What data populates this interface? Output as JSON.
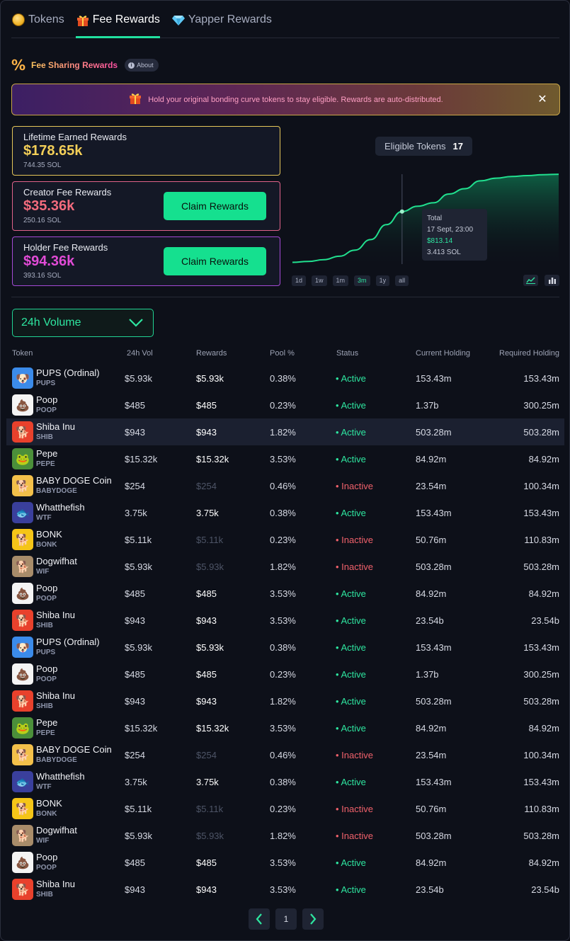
{
  "tabs": [
    {
      "label": "Tokens",
      "icon": "coin-icon",
      "active": false
    },
    {
      "label": "Fee Rewards",
      "icon": "gift-icon",
      "active": true
    },
    {
      "label": "Yapper Rewards",
      "icon": "diamond-icon",
      "active": false
    }
  ],
  "section": {
    "title": "Fee Sharing Rewards",
    "about_label": "About"
  },
  "banner": {
    "text": "Hold your original bonding curve tokens to stay eligible. Rewards are auto-distributed."
  },
  "cards": {
    "lifetime": {
      "label": "Lifetime Earned Rewards",
      "value": "$178.65k",
      "sol": "744.35 SOL"
    },
    "creator": {
      "label": "Creator Fee Rewards",
      "value": "$35.36k",
      "sol": "250.16 SOL",
      "button": "Claim Rewards"
    },
    "holder": {
      "label": "Holder Fee Rewards",
      "value": "$94.36k",
      "sol": "393.16 SOL",
      "button": "Claim Rewards"
    }
  },
  "chart": {
    "eligible_label": "Eligible Tokens",
    "eligible_count": "17",
    "tooltip": {
      "title": "Total",
      "date": "17 Sept, 23:00",
      "usd": "$813.14",
      "sol": "3.413 SOL"
    },
    "ranges": [
      "1d",
      "1w",
      "1m",
      "3m",
      "1y",
      "all"
    ],
    "selected_range": "3m",
    "colors": {
      "line": "#21e08f",
      "fill_top": "#0f6b4a"
    }
  },
  "chart_data": {
    "type": "area",
    "title": "",
    "xlabel": "",
    "ylabel": "",
    "series": [
      {
        "values": [
          2,
          3,
          5,
          9,
          16,
          28,
          45,
          60,
          66,
          70,
          80,
          86,
          95,
          98,
          100,
          101,
          102,
          102.5
        ]
      }
    ],
    "highlight": {
      "index": 7,
      "label": "17 Sept, 23:00",
      "value": "$813.14"
    },
    "grid": false
  },
  "dropdown": {
    "selected": "24h Volume"
  },
  "table": {
    "headers": {
      "token": "Token",
      "vol": "24h Vol",
      "rewards": "Rewards",
      "pool": "Pool %",
      "status": "Status",
      "current": "Current Holding",
      "required": "Required Holding"
    },
    "rows": [
      {
        "name": "PUPS (Ordinal)",
        "symbol": "PUPS",
        "logo": "pups",
        "vol": "$5.93k",
        "rewards": "$5.93k",
        "pool": "0.38%",
        "status": "Active",
        "current": "153.43m",
        "required": "153.43m"
      },
      {
        "name": "Poop",
        "symbol": "POOP",
        "logo": "poop",
        "vol": "$485",
        "rewards": "$485",
        "pool": "0.23%",
        "status": "Active",
        "current": "1.37b",
        "required": "300.25m"
      },
      {
        "name": "Shiba Inu",
        "symbol": "SHIB",
        "logo": "shib",
        "vol": "$943",
        "rewards": "$943",
        "pool": "1.82%",
        "status": "Active",
        "current": "503.28m",
        "required": "503.28m",
        "highlight": true
      },
      {
        "name": "Pepe",
        "symbol": "PEPE",
        "logo": "pepe",
        "vol": "$15.32k",
        "rewards": "$15.32k",
        "pool": "3.53%",
        "status": "Active",
        "current": "84.92m",
        "required": "84.92m"
      },
      {
        "name": "BABY DOGE Coin",
        "symbol": "BABYDOGE",
        "logo": "babydoge",
        "vol": "$254",
        "rewards": "$254",
        "pool": "0.46%",
        "status": "Inactive",
        "current": "23.54m",
        "required": "100.34m"
      },
      {
        "name": "Whatthefish",
        "symbol": "WTF",
        "logo": "wtf",
        "vol": "3.75k",
        "rewards": "3.75k",
        "pool": "0.38%",
        "status": "Active",
        "current": "153.43m",
        "required": "153.43m"
      },
      {
        "name": "BONK",
        "symbol": "BONK",
        "logo": "bonk",
        "vol": "$5.11k",
        "rewards": "$5.11k",
        "pool": "0.23%",
        "status": "Inactive",
        "current": "50.76m",
        "required": "110.83m"
      },
      {
        "name": "Dogwifhat",
        "symbol": "WIF",
        "logo": "wif",
        "vol": "$5.93k",
        "rewards": "$5.93k",
        "pool": "1.82%",
        "status": "Inactive",
        "current": "503.28m",
        "required": "503.28m"
      },
      {
        "name": "Poop",
        "symbol": "POOP",
        "logo": "poop",
        "vol": "$485",
        "rewards": "$485",
        "pool": "3.53%",
        "status": "Active",
        "current": "84.92m",
        "required": "84.92m"
      },
      {
        "name": "Shiba Inu",
        "symbol": "SHIB",
        "logo": "shib",
        "vol": "$943",
        "rewards": "$943",
        "pool": "3.53%",
        "status": "Active",
        "current": "23.54b",
        "required": "23.54b"
      },
      {
        "name": "PUPS (Ordinal)",
        "symbol": "PUPS",
        "logo": "pups",
        "vol": "$5.93k",
        "rewards": "$5.93k",
        "pool": "0.38%",
        "status": "Active",
        "current": "153.43m",
        "required": "153.43m"
      },
      {
        "name": "Poop",
        "symbol": "POOP",
        "logo": "poop",
        "vol": "$485",
        "rewards": "$485",
        "pool": "0.23%",
        "status": "Active",
        "current": "1.37b",
        "required": "300.25m"
      },
      {
        "name": "Shiba Inu",
        "symbol": "SHIB",
        "logo": "shib",
        "vol": "$943",
        "rewards": "$943",
        "pool": "1.82%",
        "status": "Active",
        "current": "503.28m",
        "required": "503.28m"
      },
      {
        "name": "Pepe",
        "symbol": "PEPE",
        "logo": "pepe",
        "vol": "$15.32k",
        "rewards": "$15.32k",
        "pool": "3.53%",
        "status": "Active",
        "current": "84.92m",
        "required": "84.92m"
      },
      {
        "name": "BABY DOGE Coin",
        "symbol": "BABYDOGE",
        "logo": "babydoge",
        "vol": "$254",
        "rewards": "$254",
        "pool": "0.46%",
        "status": "Inactive",
        "current": "23.54m",
        "required": "100.34m"
      },
      {
        "name": "Whatthefish",
        "symbol": "WTF",
        "logo": "wtf",
        "vol": "3.75k",
        "rewards": "3.75k",
        "pool": "0.38%",
        "status": "Active",
        "current": "153.43m",
        "required": "153.43m"
      },
      {
        "name": "BONK",
        "symbol": "BONK",
        "logo": "bonk",
        "vol": "$5.11k",
        "rewards": "$5.11k",
        "pool": "0.23%",
        "status": "Inactive",
        "current": "50.76m",
        "required": "110.83m"
      },
      {
        "name": "Dogwifhat",
        "symbol": "WIF",
        "logo": "wif",
        "vol": "$5.93k",
        "rewards": "$5.93k",
        "pool": "1.82%",
        "status": "Inactive",
        "current": "503.28m",
        "required": "503.28m"
      },
      {
        "name": "Poop",
        "symbol": "POOP",
        "logo": "poop",
        "vol": "$485",
        "rewards": "$485",
        "pool": "3.53%",
        "status": "Active",
        "current": "84.92m",
        "required": "84.92m"
      },
      {
        "name": "Shiba Inu",
        "symbol": "SHIB",
        "logo": "shib",
        "vol": "$943",
        "rewards": "$943",
        "pool": "3.53%",
        "status": "Active",
        "current": "23.54b",
        "required": "23.54b"
      }
    ]
  },
  "pagination": {
    "page": "1"
  },
  "colors": {
    "accent": "#21e08f",
    "active": "#2ee6a0",
    "inactive": "#f0616b",
    "background": "#0d1019"
  }
}
